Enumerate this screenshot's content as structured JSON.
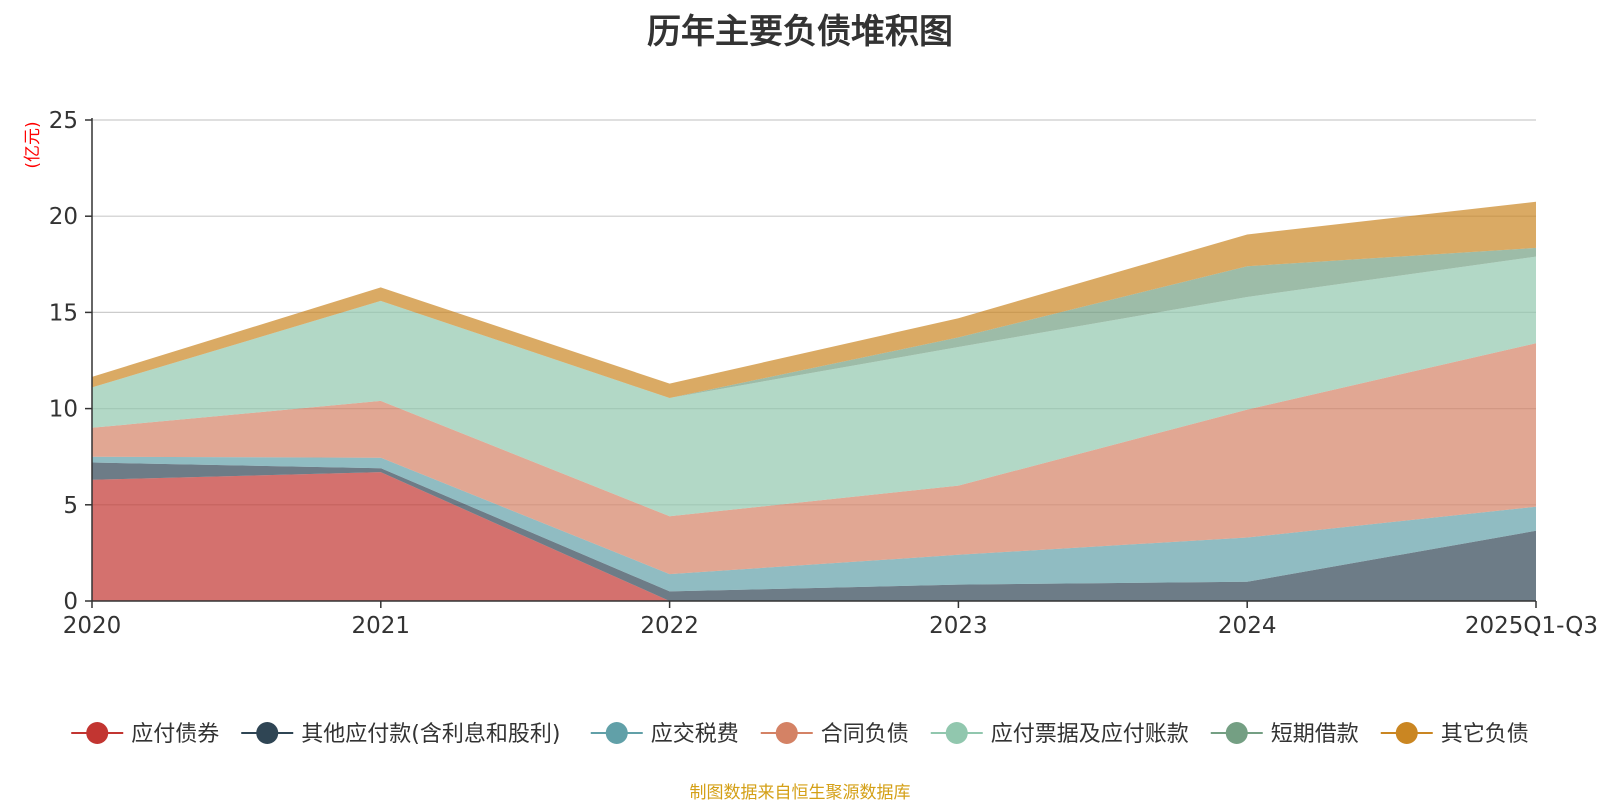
{
  "chart_data": {
    "type": "area",
    "stacked": true,
    "title": "历年主要负债堆积图",
    "ylabel": "(亿元)",
    "ylim": [
      0,
      25
    ],
    "yticks": [
      0,
      5,
      10,
      15,
      20,
      25
    ],
    "categories": [
      "2020",
      "2021",
      "2022",
      "2023",
      "2024",
      "2025Q1-Q3"
    ],
    "legend_position": "bottom",
    "source": "制图数据来自恒生聚源数据库",
    "series": [
      {
        "name": "应付债券",
        "color": "#c23531",
        "values": [
          6.3,
          6.7,
          0.0,
          0.0,
          0.0,
          0.0
        ]
      },
      {
        "name": "其他应付款(含利息和股利)",
        "color": "#2f4554",
        "values": [
          0.9,
          0.2,
          0.5,
          0.85,
          1.0,
          3.65
        ]
      },
      {
        "name": "应交税费",
        "color": "#61a0a8",
        "values": [
          0.3,
          0.55,
          0.9,
          1.55,
          2.3,
          1.25
        ]
      },
      {
        "name": "合同负债",
        "color": "#d48265",
        "values": [
          1.5,
          2.95,
          3.0,
          3.6,
          6.65,
          8.5
        ]
      },
      {
        "name": "应付票据及应付账款",
        "color": "#91c7ae",
        "values": [
          2.1,
          5.2,
          6.15,
          7.2,
          5.85,
          4.5
        ]
      },
      {
        "name": "短期借款",
        "color": "#749f83",
        "values": [
          0.0,
          0.0,
          0.0,
          0.5,
          1.6,
          0.45
        ]
      },
      {
        "name": "其它负债",
        "color": "#ca8622",
        "values": [
          0.55,
          0.7,
          0.75,
          1.0,
          1.65,
          2.4
        ]
      }
    ]
  },
  "colors": {
    "title": "#333333",
    "axis": "#333333",
    "grid": "#cccccc",
    "ylabel": "#ff0000",
    "source": "#d4a017"
  }
}
